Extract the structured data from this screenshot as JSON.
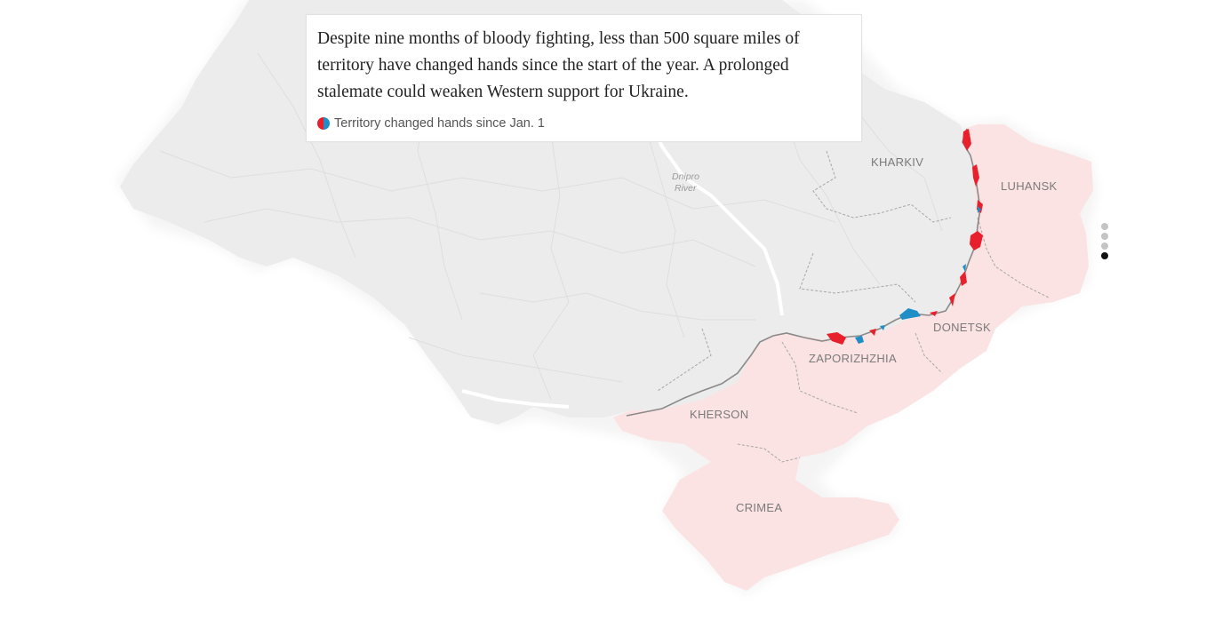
{
  "caption": {
    "text": "Despite nine months of bloody fighting, less than 500 square miles of territory have changed hands since the start of the year. A prolonged stalemate could weaken Western support for Ukraine.",
    "legend_label": "Territory changed hands since Jan. 1"
  },
  "map": {
    "region_labels": {
      "kharkiv": "KHARKIV",
      "luhansk": "LUHANSK",
      "donetsk": "DONETSK",
      "zaporizhzhia": "ZAPORIZHZHIA",
      "kherson": "KHERSON",
      "crimea": "CRIMEA"
    },
    "river_label_line1": "Dnipro",
    "river_label_line2": "River"
  },
  "pager": {
    "steps": 4,
    "active_step": 4
  },
  "colors": {
    "land": "#ececec",
    "land_edge": "#f5f5f5",
    "occupied": "#fbe3e3",
    "russia_gain": "#e8202c",
    "ukraine_gain": "#1f8dc6",
    "front_line": "#8a8a8a",
    "pager_inactive": "#c4c4c4",
    "pager_active": "#111111"
  }
}
